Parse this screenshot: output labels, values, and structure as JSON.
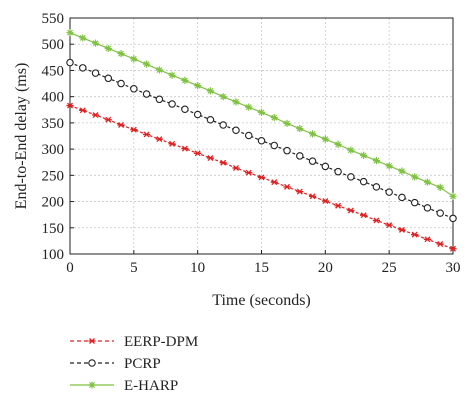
{
  "chart_data": {
    "type": "line",
    "xlabel": "Time (seconds)",
    "ylabel": "End-to-End delay (ms)",
    "xlim": [
      0,
      30
    ],
    "ylim": [
      100,
      550
    ],
    "xticks": [
      0,
      5,
      10,
      15,
      20,
      25,
      30
    ],
    "yticks": [
      100,
      150,
      200,
      250,
      300,
      350,
      400,
      450,
      500,
      550
    ],
    "grid": true,
    "legend_position": "bottom-left",
    "x": [
      0,
      1,
      2,
      3,
      4,
      5,
      6,
      7,
      8,
      9,
      10,
      11,
      12,
      13,
      14,
      15,
      16,
      17,
      18,
      19,
      20,
      21,
      22,
      23,
      24,
      25,
      26,
      27,
      28,
      29,
      30
    ],
    "series": [
      {
        "name": "EERP-DPM",
        "color": "#e02020",
        "marker": "asterisk",
        "linestyle": "dashed",
        "values": [
          383,
          374,
          365,
          356,
          346,
          337,
          328,
          319,
          310,
          301,
          292,
          283,
          274,
          264,
          255,
          246,
          237,
          228,
          219,
          210,
          201,
          192,
          183,
          174,
          164,
          155,
          146,
          137,
          128,
          119,
          110
        ]
      },
      {
        "name": "PCRP",
        "color": "#222222",
        "marker": "circle",
        "linestyle": "dashed",
        "values": [
          465,
          455,
          445,
          435,
          425,
          415,
          405,
          395,
          386,
          376,
          366,
          356,
          346,
          336,
          326,
          316,
          307,
          297,
          287,
          277,
          267,
          257,
          247,
          238,
          228,
          218,
          208,
          198,
          188,
          178,
          168
        ]
      },
      {
        "name": "E-HARP",
        "color": "#7fc241",
        "marker": "star",
        "linestyle": "solid",
        "values": [
          522,
          512,
          502,
          492,
          482,
          472,
          462,
          451,
          441,
          431,
          421,
          411,
          400,
          390,
          380,
          370,
          360,
          349,
          339,
          329,
          319,
          309,
          298,
          288,
          278,
          268,
          258,
          247,
          237,
          227,
          210
        ]
      }
    ]
  }
}
